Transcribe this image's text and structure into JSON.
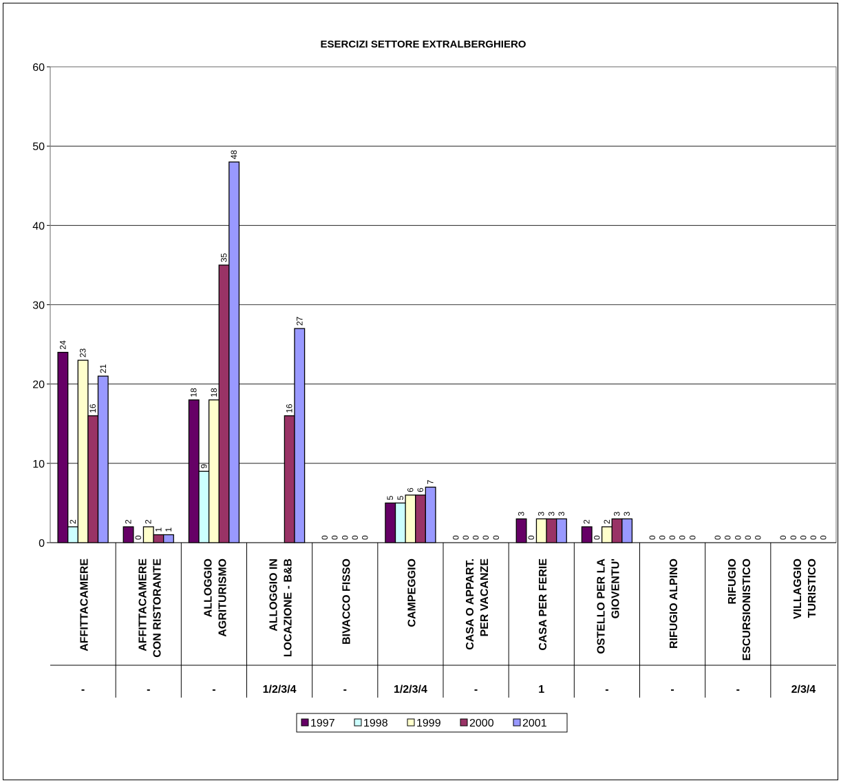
{
  "chart_data": {
    "type": "bar",
    "title": "ESERCIZI SETTORE EXTRALBERGHIERO",
    "xlabel": "",
    "ylabel": "",
    "ylim": [
      0,
      60
    ],
    "yticks": [
      0,
      10,
      20,
      30,
      40,
      50,
      60
    ],
    "grid": true,
    "legend_position": "bottom",
    "categories": [
      {
        "lines": [
          "AFFITTACAMERE"
        ],
        "code": "-"
      },
      {
        "lines": [
          "AFFITTACAMERE",
          "CON RISTORANTE"
        ],
        "code": "-"
      },
      {
        "lines": [
          "ALLOGGIO",
          "AGRITURISMO"
        ],
        "code": "-"
      },
      {
        "lines": [
          "ALLOGGIO IN",
          "LOCAZIONE - B&B"
        ],
        "code": "1/2/3/4"
      },
      {
        "lines": [
          "BIVACCO FISSO"
        ],
        "code": "-"
      },
      {
        "lines": [
          "CAMPEGGIO"
        ],
        "code": "1/2/3/4"
      },
      {
        "lines": [
          "CASA O APPART.",
          "PER VACANZE"
        ],
        "code": "-"
      },
      {
        "lines": [
          "CASA PER FERIE"
        ],
        "code": "1"
      },
      {
        "lines": [
          "OSTELLO PER LA",
          "GIOVENTU'"
        ],
        "code": "-"
      },
      {
        "lines": [
          "RIFUGIO ALPINO"
        ],
        "code": "-"
      },
      {
        "lines": [
          "RIFUGIO",
          "ESCURSIONISTICO"
        ],
        "code": "-"
      },
      {
        "lines": [
          "VILLAGGIO",
          "TURISTICO"
        ],
        "code": "2/3/4"
      }
    ],
    "series": [
      {
        "name": "1997",
        "color": "#660066",
        "values": [
          24,
          2,
          18,
          0,
          0,
          5,
          0,
          3,
          2,
          0,
          0,
          0
        ]
      },
      {
        "name": "1998",
        "color": "#ccffff",
        "values": [
          2,
          0,
          9,
          0,
          0,
          5,
          0,
          0,
          0,
          0,
          0,
          0
        ]
      },
      {
        "name": "1999",
        "color": "#ffffcc",
        "values": [
          23,
          2,
          18,
          0,
          0,
          6,
          0,
          3,
          2,
          0,
          0,
          0
        ]
      },
      {
        "name": "2000",
        "color": "#993366",
        "values": [
          16,
          1,
          35,
          16,
          0,
          6,
          0,
          3,
          3,
          0,
          0,
          0
        ]
      },
      {
        "name": "2001",
        "color": "#9999ff",
        "values": [
          21,
          1,
          48,
          27,
          0,
          7,
          0,
          3,
          3,
          0,
          0,
          0
        ]
      }
    ],
    "value_labels_hidden": [
      [
        3,
        0
      ],
      [
        3,
        1
      ],
      [
        3,
        2
      ]
    ]
  }
}
